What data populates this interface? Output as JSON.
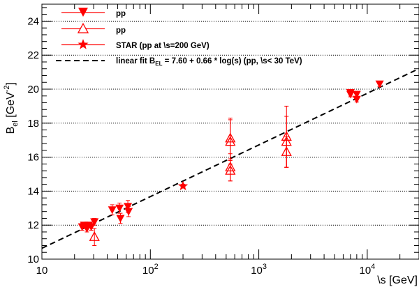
{
  "chart_data": {
    "type": "scatter",
    "title": "",
    "xscale": "log",
    "xlim": [
      10,
      30000
    ],
    "ylim": [
      10,
      25
    ],
    "ylabel": "B_el [GeV^-2]",
    "xlabel": "√s [GeV]",
    "xlabel_parts": {
      "main": "\\s",
      "unit": "[GeV]"
    },
    "ylabel_parts": {
      "main": "B",
      "sub": "el",
      "unit_pre": "[GeV",
      "sup": "-2",
      "unit_post": "]"
    },
    "y_ticks": [
      10,
      12,
      14,
      16,
      18,
      20,
      22,
      24
    ],
    "y_tick_labels": [
      "10",
      "12",
      "14",
      "16",
      "18",
      "20",
      "22",
      "24"
    ],
    "x_ticks": [
      10,
      100,
      1000,
      10000
    ],
    "x_tick_labels": [
      {
        "base": "10",
        "exp": ""
      },
      {
        "base": "10",
        "exp": "2"
      },
      {
        "base": "10",
        "exp": "3"
      },
      {
        "base": "10",
        "exp": "4"
      }
    ],
    "grid": "horizontal",
    "legend_position": "top-left",
    "legend": [
      {
        "label": "pp",
        "marker": "triangle-down-filled"
      },
      {
        "label": "pp",
        "marker": "triangle-up-open"
      },
      {
        "label": "STAR (pp at \\s=200 GeV)",
        "marker": "star-filled"
      },
      {
        "label": "linear fit B_EL = 7.60 + 0.66 * log(s) (pp, \\s< 30 TeV)",
        "marker": "dashed-line"
      }
    ],
    "legend_fit_parts": {
      "pre": "linear fit B",
      "sub": "EL",
      "post": " = 7.60 + 0.66 * log(s) (pp, \\s< 30 TeV)"
    },
    "fit": {
      "intercept": 7.6,
      "slope": 0.66,
      "x_range": [
        10,
        30000
      ]
    },
    "series": [
      {
        "name": "pp",
        "marker": "triangle-down-filled",
        "color": "#ff0000",
        "points": [
          {
            "x": 23.5,
            "y": 11.9,
            "err": 0.2
          },
          {
            "x": 24.5,
            "y": 12.0,
            "err": 0.15
          },
          {
            "x": 26.0,
            "y": 11.8,
            "err": 0.2
          },
          {
            "x": 27.0,
            "y": 12.0,
            "err": 0.15
          },
          {
            "x": 28.5,
            "y": 11.9,
            "err": 0.2
          },
          {
            "x": 30.5,
            "y": 12.2,
            "err": 0.2
          },
          {
            "x": 44.5,
            "y": 12.9,
            "err": 0.3
          },
          {
            "x": 52.0,
            "y": 13.0,
            "err": 0.3
          },
          {
            "x": 53.0,
            "y": 12.4,
            "err": 0.3
          },
          {
            "x": 62.0,
            "y": 13.1,
            "err": 0.35
          },
          {
            "x": 63.0,
            "y": 12.8,
            "err": 0.3
          },
          {
            "x": 7000,
            "y": 19.8,
            "err": 0.15
          },
          {
            "x": 7000,
            "y": 19.7,
            "err": 0.15
          },
          {
            "x": 8000,
            "y": 19.7,
            "err": 0.15
          },
          {
            "x": 8000,
            "y": 19.4,
            "err": 0.15
          },
          {
            "x": 13000,
            "y": 20.3,
            "err": 0.15
          }
        ]
      },
      {
        "name": "pp",
        "marker": "triangle-up-open",
        "color": "#ff0000",
        "points": [
          {
            "x": 30.5,
            "y": 11.3,
            "err": 0.5
          },
          {
            "x": 546,
            "y": 17.1,
            "err": 1.2
          },
          {
            "x": 546,
            "y": 16.9,
            "err": 1.3
          },
          {
            "x": 546,
            "y": 15.4,
            "err": 0.8
          },
          {
            "x": 546,
            "y": 15.2,
            "err": 0.6
          },
          {
            "x": 1800,
            "y": 17.2,
            "err": 1.8
          },
          {
            "x": 1800,
            "y": 16.9,
            "err": 1.5
          },
          {
            "x": 1800,
            "y": 16.3,
            "err": 0.9
          }
        ]
      },
      {
        "name": "STAR (pp at \\s=200 GeV)",
        "marker": "star-filled",
        "color": "#ff0000",
        "points": [
          {
            "x": 200,
            "y": 14.3,
            "err": 0.1
          }
        ]
      }
    ]
  }
}
